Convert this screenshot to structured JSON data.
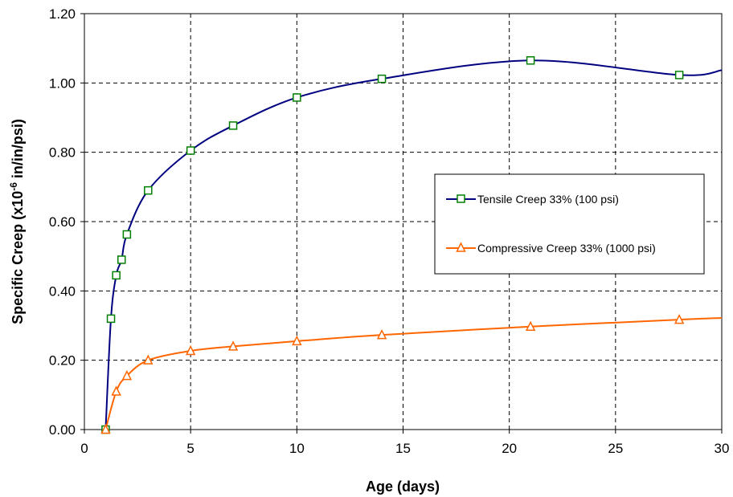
{
  "chart_data": {
    "type": "line",
    "title": "",
    "xlabel": "Age (days)",
    "ylabel_main": "Specific Creep (x10",
    "ylabel_exp": "-6",
    "ylabel_tail": " in/in/psi)",
    "xlim": [
      0,
      30
    ],
    "ylim": [
      0,
      1.2
    ],
    "xticks": [
      0,
      5,
      10,
      15,
      20,
      25,
      30
    ],
    "yticks": [
      0,
      0.2,
      0.4,
      0.6,
      0.8,
      1.0,
      1.2
    ],
    "xtick_labels": [
      "0",
      "5",
      "10",
      "15",
      "20",
      "25",
      "30"
    ],
    "ytick_labels": [
      "0.00",
      "0.20",
      "0.40",
      "0.60",
      "0.80",
      "1.00",
      "1.20"
    ],
    "grid": true,
    "legend_position": "right",
    "series": [
      {
        "name": "Tensile Creep 33% (100 psi)",
        "color": "#000080",
        "marker": "square",
        "marker_color": "#008000",
        "x": [
          1,
          1.25,
          1.5,
          1.75,
          2,
          3,
          5,
          7,
          10,
          14,
          21,
          28
        ],
        "y": [
          0.0,
          0.32,
          0.445,
          0.49,
          0.563,
          0.69,
          0.805,
          0.877,
          0.958,
          1.012,
          1.065,
          1.023
        ],
        "line_end": [
          30,
          1.037
        ]
      },
      {
        "name": "Compressive Creep 33% (1000 psi)",
        "color": "#FF6600",
        "marker": "triangle",
        "marker_color": "#FF6600",
        "x": [
          1,
          1.5,
          2,
          3,
          5,
          7,
          10,
          14,
          21,
          28
        ],
        "y": [
          0.0,
          0.11,
          0.155,
          0.2,
          0.227,
          0.24,
          0.255,
          0.273,
          0.297,
          0.317
        ],
        "line_end": [
          30,
          0.322
        ]
      }
    ]
  }
}
